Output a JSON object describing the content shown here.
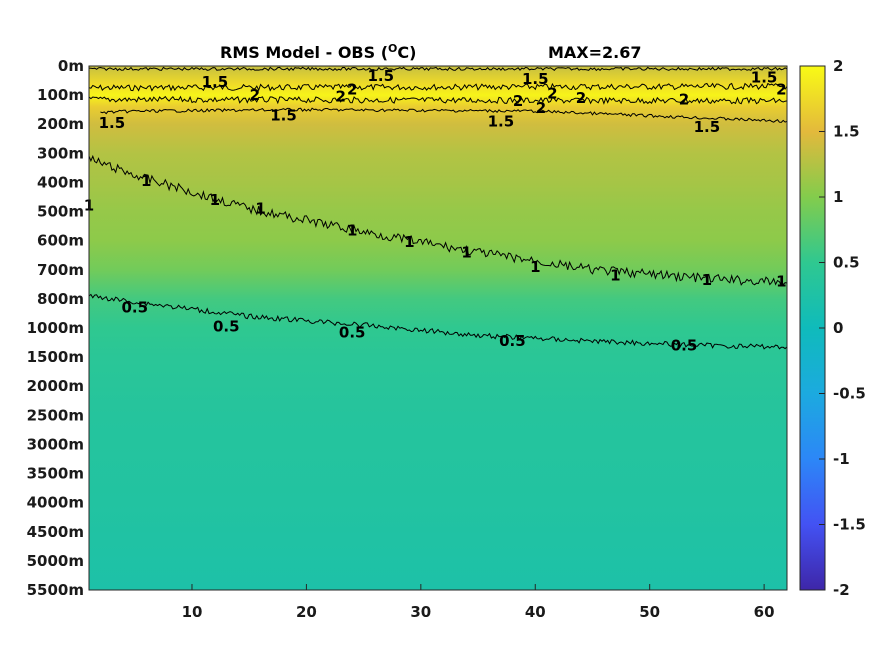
{
  "chart_data": {
    "type": "heatmap",
    "title": "RMS Model - OBS (",
    "title_unit": "O",
    "title_unit_suffix": "C)",
    "max_label": "MAX=2.67",
    "xlabel": "",
    "ylabel": "",
    "xlim": [
      1,
      62
    ],
    "x_ticks": [
      10,
      20,
      30,
      40,
      50,
      60
    ],
    "y_tick_labels": [
      "0m",
      "100m",
      "200m",
      "300m",
      "400m",
      "500m",
      "600m",
      "700m",
      "800m",
      "1000m",
      "1500m",
      "2000m",
      "2500m",
      "3000m",
      "3500m",
      "4000m",
      "4500m",
      "5000m",
      "5500m"
    ],
    "colorbar": {
      "range": [
        -2,
        2
      ],
      "ticks": [
        "2",
        "1.5",
        "1",
        "0.5",
        "0",
        "-0.5",
        "-1",
        "-1.5",
        "-2"
      ],
      "colormap": "parula"
    },
    "depth_profile": [
      {
        "level": 0,
        "value": 1.35
      },
      {
        "level": 0.6,
        "value": 1.75
      },
      {
        "level": 1.0,
        "value": 1.95
      },
      {
        "level": 1.4,
        "value": 1.65
      },
      {
        "level": 2.0,
        "value": 1.4
      },
      {
        "level": 3.0,
        "value": 1.25
      },
      {
        "level": 4.0,
        "value": 1.18
      },
      {
        "level": 5.0,
        "value": 1.1
      },
      {
        "level": 6.0,
        "value": 1.05
      },
      {
        "level": 7.0,
        "value": 0.9
      },
      {
        "level": 8.0,
        "value": 0.62
      },
      {
        "level": 9.0,
        "value": 0.5
      },
      {
        "level": 10.0,
        "value": 0.42
      },
      {
        "level": 12.0,
        "value": 0.35
      },
      {
        "level": 15.0,
        "value": 0.3
      },
      {
        "level": 18.0,
        "value": 0.22
      }
    ],
    "contours": [
      {
        "value": 2,
        "label": "2",
        "kind": "band",
        "upper": [
          [
            1,
            0.75
          ],
          [
            62,
            0.7
          ]
        ],
        "lower": [
          [
            1,
            1.15
          ],
          [
            62,
            1.2
          ]
        ],
        "label_points": [
          [
            15.5,
            1.0
          ],
          [
            23,
            1.05
          ],
          [
            24,
            0.8
          ],
          [
            38.5,
            1.2
          ],
          [
            40.5,
            1.45
          ],
          [
            41.5,
            0.95
          ],
          [
            44,
            1.1
          ],
          [
            53,
            1.15
          ],
          [
            61.5,
            0.8
          ]
        ]
      },
      {
        "value": 1.5,
        "label": "1.5",
        "kind": "line",
        "points": [
          [
            1,
            0.1
          ],
          [
            62,
            0.1
          ]
        ],
        "label_points": [
          [
            12,
            0.55
          ],
          [
            26.5,
            0.35
          ],
          [
            40,
            0.45
          ],
          [
            60,
            0.4
          ]
        ]
      },
      {
        "value": 1.5,
        "label": "1.5",
        "kind": "line",
        "points": [
          [
            2,
            1.6
          ],
          [
            5,
            1.55
          ],
          [
            20,
            1.5
          ],
          [
            40,
            1.55
          ],
          [
            62,
            1.9
          ]
        ],
        "label_points": [
          [
            18,
            1.7
          ],
          [
            37,
            1.9
          ],
          [
            55,
            2.1
          ],
          [
            3,
            1.95
          ]
        ]
      },
      {
        "value": 1,
        "label": "1",
        "kind": "line",
        "points": [
          [
            1,
            3.2
          ],
          [
            5,
            3.75
          ],
          [
            15,
            4.9
          ],
          [
            25,
            5.7
          ],
          [
            35,
            6.4
          ],
          [
            45,
            7.0
          ],
          [
            55,
            7.3
          ],
          [
            62,
            7.45
          ]
        ],
        "label_points": [
          [
            6,
            3.95
          ],
          [
            12,
            4.6
          ],
          [
            16,
            4.9
          ],
          [
            24,
            5.65
          ],
          [
            29,
            6.05
          ],
          [
            34,
            6.4
          ],
          [
            40,
            6.9
          ],
          [
            47,
            7.2
          ],
          [
            55,
            7.35
          ],
          [
            61.5,
            7.4
          ],
          [
            1,
            4.8
          ]
        ]
      },
      {
        "value": 0.5,
        "label": "0.5",
        "kind": "line",
        "points": [
          [
            1,
            7.9
          ],
          [
            5,
            8.1
          ],
          [
            15,
            8.6
          ],
          [
            25,
            8.9
          ],
          [
            35,
            9.25
          ],
          [
            45,
            9.45
          ],
          [
            55,
            9.6
          ],
          [
            62,
            9.65
          ]
        ],
        "label_points": [
          [
            5,
            8.3
          ],
          [
            13,
            8.95
          ],
          [
            24,
            9.15
          ],
          [
            38,
            9.45
          ],
          [
            53,
            9.6
          ]
        ]
      }
    ]
  }
}
